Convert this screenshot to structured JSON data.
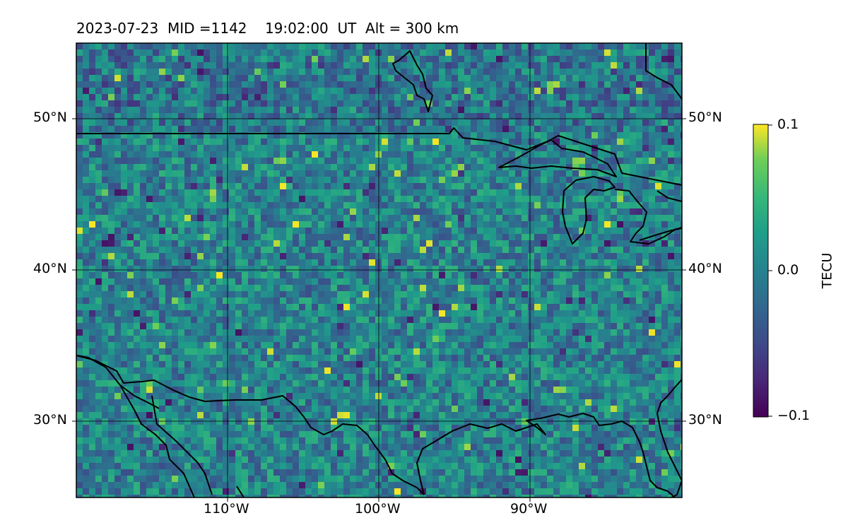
{
  "title": "2023-07-23  MID =1142    19:02:00  UT  Alt = 300 km",
  "lat_labels": [
    "50°N",
    "40°N",
    "30°N"
  ],
  "lon_labels": [
    "110°W",
    "100°W",
    "90°W"
  ],
  "colorbar": {
    "label": "TECU",
    "ticks": [
      "0.1",
      "0.0",
      "−0.1"
    ],
    "colormap": "viridis",
    "range": [
      -0.1,
      0.1
    ]
  },
  "extent": {
    "lon": [
      -120,
      -80
    ],
    "lat": [
      25,
      55
    ]
  },
  "colors": {
    "coastline": "#000000",
    "grid": "#000000"
  }
}
